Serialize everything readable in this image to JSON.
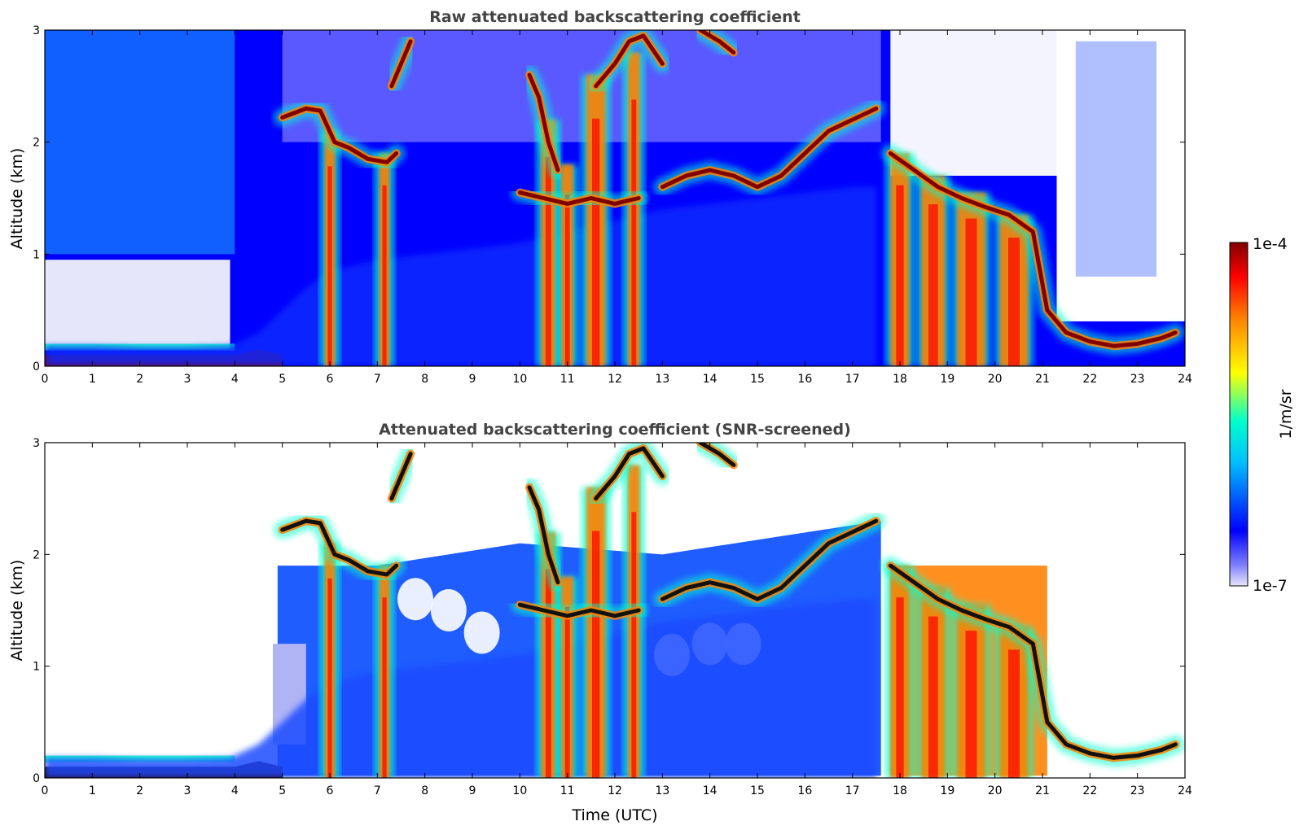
{
  "chart_data": [
    {
      "type": "heatmap",
      "title": "Raw attenuated backscattering coefficient",
      "xlabel": "",
      "ylabel": "Altitude (km)",
      "xlim": [
        0,
        24
      ],
      "ylim": [
        0,
        3
      ],
      "xticks": [
        "0",
        "1",
        "2",
        "3",
        "4",
        "5",
        "6",
        "7",
        "8",
        "9",
        "10",
        "11",
        "12",
        "13",
        "14",
        "15",
        "16",
        "17",
        "18",
        "19",
        "20",
        "21",
        "22",
        "23",
        "24"
      ],
      "yticks": [
        "0",
        "1",
        "2",
        "3"
      ],
      "screened": false
    },
    {
      "type": "heatmap",
      "title": "Attenuated backscattering coefficient (SNR-screened)",
      "xlabel": "Time (UTC)",
      "ylabel": "Altitude (km)",
      "xlim": [
        0,
        24
      ],
      "ylim": [
        0,
        3
      ],
      "xticks": [
        "0",
        "1",
        "2",
        "3",
        "4",
        "5",
        "6",
        "7",
        "8",
        "9",
        "10",
        "11",
        "12",
        "13",
        "14",
        "15",
        "16",
        "17",
        "18",
        "19",
        "20",
        "21",
        "22",
        "23",
        "24"
      ],
      "yticks": [
        "0",
        "1",
        "2",
        "3"
      ],
      "screened": true
    }
  ],
  "colorbar": {
    "label": "1/m/sr",
    "max_label": "1e-4",
    "min_label": "1e-7",
    "colors": [
      "#e6e6fa",
      "#0000ff",
      "#00bfff",
      "#00ffcc",
      "#ffff00",
      "#ff8000",
      "#ff0000",
      "#800000"
    ]
  },
  "features": {
    "boundary_layer": [
      [
        0,
        0.18
      ],
      [
        1,
        0.18
      ],
      [
        2,
        0.17
      ],
      [
        3,
        0.17
      ],
      [
        3.9,
        0.18
      ],
      [
        4.5,
        0.3
      ],
      [
        5.0,
        0.5
      ],
      [
        5.5,
        0.7
      ],
      [
        6,
        0.85
      ],
      [
        7,
        0.95
      ],
      [
        8,
        1.0
      ],
      [
        9,
        1.05
      ],
      [
        10,
        1.1
      ],
      [
        11,
        1.2
      ],
      [
        12,
        1.3
      ],
      [
        13,
        1.4
      ],
      [
        14,
        1.45
      ],
      [
        15,
        1.5
      ],
      [
        16,
        1.55
      ],
      [
        17,
        1.6
      ],
      [
        17.5,
        1.6
      ]
    ],
    "surface_layer": [
      [
        0,
        0.1
      ],
      [
        1,
        0.1
      ],
      [
        2,
        0.1
      ],
      [
        3,
        0.1
      ],
      [
        4,
        0.1
      ],
      [
        4.5,
        0.15
      ],
      [
        5,
        0.1
      ]
    ],
    "cloud_layers": [
      [
        [
          5.0,
          2.22
        ],
        [
          5.5,
          2.3
        ],
        [
          5.8,
          2.28
        ],
        [
          6.1,
          2.0
        ],
        [
          6.4,
          1.95
        ],
        [
          6.8,
          1.85
        ],
        [
          7.2,
          1.82
        ],
        [
          7.4,
          1.9
        ]
      ],
      [
        [
          10.0,
          1.55
        ],
        [
          10.5,
          1.5
        ],
        [
          11.0,
          1.45
        ],
        [
          11.5,
          1.5
        ],
        [
          12.0,
          1.45
        ],
        [
          12.5,
          1.5
        ]
      ],
      [
        [
          13.0,
          1.6
        ],
        [
          13.5,
          1.7
        ],
        [
          14.0,
          1.75
        ],
        [
          14.5,
          1.7
        ],
        [
          15.0,
          1.6
        ],
        [
          15.5,
          1.7
        ],
        [
          16.0,
          1.9
        ],
        [
          16.5,
          2.1
        ],
        [
          17.0,
          2.2
        ],
        [
          17.5,
          2.3
        ]
      ],
      [
        [
          17.8,
          1.9
        ],
        [
          18.3,
          1.75
        ],
        [
          18.8,
          1.6
        ],
        [
          19.3,
          1.5
        ],
        [
          19.8,
          1.42
        ],
        [
          20.3,
          1.35
        ],
        [
          20.8,
          1.2
        ],
        [
          21.1,
          0.5
        ],
        [
          21.5,
          0.3
        ],
        [
          22,
          0.22
        ],
        [
          22.5,
          0.18
        ],
        [
          23,
          0.2
        ],
        [
          23.5,
          0.25
        ],
        [
          23.8,
          0.3
        ]
      ],
      [
        [
          11.6,
          2.5
        ],
        [
          12.0,
          2.7
        ],
        [
          12.3,
          2.9
        ],
        [
          12.6,
          2.95
        ],
        [
          13.0,
          2.7
        ]
      ],
      [
        [
          13.8,
          3.0
        ],
        [
          14.2,
          2.9
        ],
        [
          14.5,
          2.8
        ]
      ],
      [
        [
          10.2,
          2.6
        ],
        [
          10.4,
          2.4
        ],
        [
          10.6,
          2.0
        ],
        [
          10.8,
          1.75
        ]
      ],
      [
        [
          7.3,
          2.5
        ],
        [
          7.5,
          2.7
        ],
        [
          7.7,
          2.9
        ]
      ]
    ],
    "plumes": [
      {
        "x": 6.0,
        "w": 0.22,
        "top": 2.1
      },
      {
        "x": 7.15,
        "w": 0.22,
        "top": 1.9
      },
      {
        "x": 10.6,
        "w": 0.3,
        "top": 2.2
      },
      {
        "x": 11.0,
        "w": 0.25,
        "top": 1.8
      },
      {
        "x": 11.6,
        "w": 0.4,
        "top": 2.6
      },
      {
        "x": 12.4,
        "w": 0.25,
        "top": 2.8
      },
      {
        "x": 18.0,
        "w": 0.4,
        "top": 1.9
      },
      {
        "x": 18.7,
        "w": 0.5,
        "top": 1.7
      },
      {
        "x": 19.5,
        "w": 0.6,
        "top": 1.55
      },
      {
        "x": 20.4,
        "w": 0.6,
        "top": 1.35
      }
    ]
  }
}
